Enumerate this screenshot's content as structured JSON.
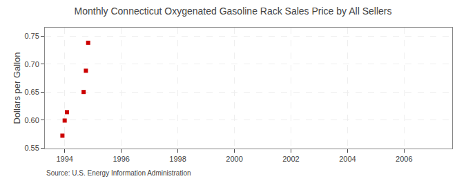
{
  "chart_data": {
    "type": "scatter",
    "title": "Monthly Connecticut Oxygenated Gasoline Rack Sales Price by All Sellers",
    "ylabel": "Dollars per Gallon",
    "annotations": [
      "Source: U.S. Energy Information Administration"
    ],
    "x": [
      1993.92,
      1994.0,
      1994.08,
      1994.67,
      1994.75,
      1994.83
    ],
    "values": [
      0.572,
      0.599,
      0.614,
      0.65,
      0.688,
      0.738
    ],
    "color": "#cc0000",
    "marker": "square",
    "xlim": [
      1993.3,
      2007.7
    ],
    "ylim": [
      0.549,
      0.765
    ],
    "xticks": [
      1994,
      1996,
      1998,
      2000,
      2002,
      2004,
      2006
    ],
    "yticks": [
      0.55,
      {
        "value": 0.6,
        "label": "0.60"
      },
      0.65,
      {
        "value": 0.7,
        "label": "0.70"
      },
      0.75
    ],
    "grid": true
  }
}
